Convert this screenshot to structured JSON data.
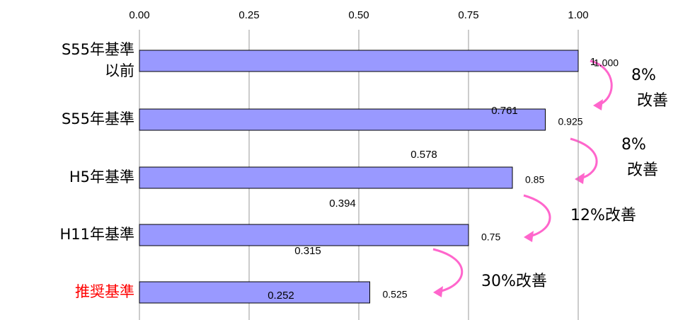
{
  "chart_data": {
    "type": "bar",
    "orientation": "horizontal",
    "categories": [
      "S55年基準\n以前",
      "S55年基準",
      "H5年基準",
      "H11年基準",
      "推奨基準"
    ],
    "category_colors": [
      "#000000",
      "#000000",
      "#000000",
      "#000000",
      "#ff0000"
    ],
    "values": [
      1,
      0.925,
      0.85,
      0.75,
      0.525
    ],
    "value_labels": [
      "1.000",
      "0.925",
      "0.85",
      "0.75",
      "0.525"
    ],
    "color": "#9999ff",
    "xlim": [
      0,
      1
    ],
    "xticks": [
      {
        "value": 0,
        "label": "0.00"
      },
      {
        "value": 0.25,
        "label": "0.25"
      },
      {
        "value": 0.5,
        "label": "0.50"
      },
      {
        "value": 0.75,
        "label": "0.75"
      },
      {
        "value": 1,
        "label": "1.00"
      }
    ],
    "grid": true,
    "other_labels": [
      1,
      0.761,
      0.578,
      0.394,
      0.315,
      0.252
    ],
    "annotations": [
      {
        "lines": [
          "8%",
          "改善"
        ]
      },
      {
        "lines": [
          "8%",
          "改善"
        ]
      },
      {
        "lines": [
          "12%改善"
        ]
      },
      {
        "lines": [
          "30%改善"
        ]
      }
    ]
  }
}
